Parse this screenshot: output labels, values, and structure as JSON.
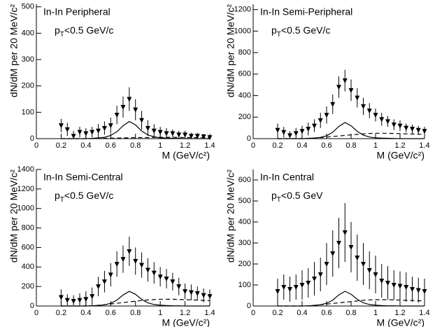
{
  "chart_data": [
    {
      "type": "errorbar",
      "title": "In-In Peripheral",
      "subtitle": {
        "base": "p",
        "sub": "T",
        "rest": "<0.5 GeV/c"
      },
      "xlabel": "M (GeV/c²)",
      "ylabel": "dN/dM per 20 MeV/c²",
      "xlim": [
        0,
        1.4
      ],
      "xticks": [
        0,
        0.2,
        0.4,
        0.6,
        0.8,
        1,
        1.2,
        1.4
      ],
      "ylim": [
        0,
        510
      ],
      "yticks": [
        0,
        100,
        200,
        300,
        400,
        500
      ],
      "x": [
        0.2,
        0.25,
        0.3,
        0.35,
        0.4,
        0.45,
        0.5,
        0.55,
        0.6,
        0.65,
        0.7,
        0.75,
        0.8,
        0.85,
        0.9,
        0.95,
        1,
        1.05,
        1.1,
        1.15,
        1.2,
        1.25,
        1.3,
        1.35,
        1.4
      ],
      "series": [
        {
          "style": "triangle-down",
          "color": "#000000",
          "values": [
            50,
            35,
            10,
            25,
            20,
            25,
            30,
            40,
            50,
            90,
            120,
            150,
            110,
            70,
            40,
            30,
            25,
            20,
            20,
            15,
            15,
            10,
            10,
            8,
            5
          ],
          "errors": [
            25,
            25,
            20,
            20,
            20,
            20,
            25,
            25,
            30,
            35,
            40,
            45,
            40,
            35,
            30,
            25,
            20,
            20,
            15,
            15,
            15,
            12,
            12,
            10,
            10
          ]
        },
        {
          "style": "solid",
          "color": "#000000",
          "values": [
            0,
            0,
            0,
            0,
            0,
            1,
            3,
            5,
            12,
            26,
            49,
            65,
            52,
            29,
            14,
            7,
            3,
            2,
            1,
            1,
            0,
            0,
            0,
            0,
            0
          ]
        },
        {
          "style": "dashed",
          "color": "#000000",
          "values": [
            0,
            0,
            0,
            0,
            0,
            0,
            1,
            1,
            2,
            2,
            3,
            3,
            4,
            4,
            4,
            5,
            5,
            5,
            5,
            5,
            4,
            4,
            4,
            4,
            3
          ]
        }
      ]
    },
    {
      "type": "errorbar",
      "title": "In-In Semi-Peripheral",
      "subtitle": {
        "base": "p",
        "sub": "T",
        "rest": "<0.5 GeV/c"
      },
      "xlabel": "M (GeV/c²)",
      "ylabel": "dN/dM per 20 MeV/c²",
      "xlim": [
        0,
        1.4
      ],
      "xticks": [
        0,
        0.2,
        0.4,
        0.6,
        0.8,
        1,
        1.2,
        1.4
      ],
      "ylim": [
        0,
        1250
      ],
      "yticks": [
        0,
        200,
        400,
        600,
        800,
        1000,
        1200
      ],
      "x": [
        0.2,
        0.25,
        0.3,
        0.35,
        0.4,
        0.45,
        0.5,
        0.55,
        0.6,
        0.65,
        0.7,
        0.75,
        0.8,
        0.85,
        0.9,
        0.95,
        1,
        1.05,
        1.1,
        1.15,
        1.2,
        1.25,
        1.3,
        1.35,
        1.4
      ],
      "series": [
        {
          "style": "triangle-down",
          "color": "#000000",
          "values": [
            80,
            60,
            30,
            50,
            70,
            90,
            120,
            170,
            220,
            320,
            480,
            540,
            450,
            380,
            300,
            260,
            220,
            180,
            160,
            130,
            120,
            100,
            90,
            80,
            70
          ],
          "errors": [
            60,
            50,
            40,
            50,
            50,
            60,
            60,
            70,
            80,
            90,
            100,
            100,
            100,
            90,
            80,
            70,
            60,
            60,
            50,
            50,
            50,
            40,
            40,
            40,
            40
          ]
        },
        {
          "style": "solid",
          "color": "#000000",
          "values": [
            0,
            0,
            0,
            0,
            0,
            3,
            6,
            12,
            27,
            60,
            113,
            150,
            120,
            68,
            33,
            15,
            8,
            5,
            3,
            2,
            0,
            0,
            0,
            0,
            0
          ]
        },
        {
          "style": "dashed",
          "color": "#000000",
          "values": [
            0,
            0,
            0,
            0,
            0,
            2,
            5,
            10,
            15,
            20,
            25,
            30,
            35,
            40,
            45,
            48,
            50,
            50,
            49,
            48,
            47,
            45,
            43,
            41,
            40
          ]
        }
      ]
    },
    {
      "type": "errorbar",
      "title": "In-In Semi-Central",
      "subtitle": {
        "base": "p",
        "sub": "T",
        "rest": "<0.5 GeV/c"
      },
      "xlabel": "M (GeV/c²)",
      "ylabel": "dN/dM per 20 MeV/c²",
      "xlim": [
        0,
        1.4
      ],
      "xticks": [
        0,
        0.2,
        0.4,
        0.6,
        0.8,
        1,
        1.2,
        1.4
      ],
      "ylim": [
        0,
        1400
      ],
      "yticks": [
        0,
        200,
        400,
        600,
        800,
        1000,
        1200,
        1400
      ],
      "x": [
        0.2,
        0.25,
        0.3,
        0.35,
        0.4,
        0.45,
        0.5,
        0.55,
        0.6,
        0.65,
        0.7,
        0.75,
        0.8,
        0.85,
        0.9,
        0.95,
        1,
        1.05,
        1.1,
        1.15,
        1.2,
        1.25,
        1.3,
        1.35,
        1.4
      ],
      "series": [
        {
          "style": "triangle-down",
          "color": "#000000",
          "values": [
            90,
            60,
            50,
            60,
            70,
            100,
            200,
            250,
            320,
            430,
            480,
            560,
            460,
            420,
            370,
            340,
            300,
            280,
            250,
            200,
            150,
            140,
            130,
            110,
            100
          ],
          "errors": [
            80,
            60,
            60,
            70,
            80,
            90,
            100,
            110,
            120,
            130,
            140,
            150,
            140,
            130,
            120,
            110,
            100,
            100,
            90,
            90,
            80,
            80,
            70,
            70,
            70
          ]
        },
        {
          "style": "solid",
          "color": "#000000",
          "values": [
            0,
            0,
            0,
            0,
            0,
            3,
            6,
            12,
            27,
            60,
            113,
            150,
            120,
            68,
            33,
            15,
            8,
            5,
            3,
            2,
            0,
            0,
            0,
            0,
            0
          ]
        },
        {
          "style": "dashed",
          "color": "#000000",
          "values": [
            0,
            0,
            0,
            0,
            0,
            3,
            7,
            14,
            21,
            28,
            35,
            42,
            49,
            56,
            62,
            66,
            70,
            70,
            69,
            67,
            65,
            63,
            60,
            57,
            55
          ]
        }
      ]
    },
    {
      "type": "errorbar",
      "title": "In-In Central",
      "subtitle": {
        "base": "p",
        "sub": "T",
        "rest": "<0.5 GeV"
      },
      "xlabel": "M (GeV/c²)",
      "ylabel": "dN/dM per 20 MeV/c²",
      "xlim": [
        0,
        1.4
      ],
      "xticks": [
        0,
        0.2,
        0.4,
        0.6,
        0.8,
        1,
        1.2,
        1.4
      ],
      "ylim": [
        0,
        650
      ],
      "yticks": [
        0,
        100,
        200,
        300,
        400,
        500,
        600
      ],
      "x": [
        0.2,
        0.25,
        0.3,
        0.35,
        0.4,
        0.45,
        0.5,
        0.55,
        0.6,
        0.65,
        0.7,
        0.75,
        0.8,
        0.85,
        0.9,
        0.95,
        1,
        1.05,
        1.1,
        1.15,
        1.2,
        1.25,
        1.3,
        1.35,
        1.4
      ],
      "series": [
        {
          "style": "triangle-down",
          "color": "#000000",
          "values": [
            70,
            90,
            80,
            90,
            100,
            110,
            130,
            150,
            200,
            250,
            300,
            350,
            280,
            230,
            200,
            170,
            150,
            120,
            110,
            100,
            95,
            90,
            80,
            75,
            70
          ],
          "errors": [
            60,
            60,
            60,
            60,
            70,
            70,
            80,
            80,
            100,
            110,
            120,
            140,
            120,
            110,
            100,
            90,
            90,
            80,
            80,
            70,
            70,
            70,
            60,
            60,
            60
          ]
        },
        {
          "style": "solid",
          "color": "#000000",
          "values": [
            0,
            0,
            0,
            0,
            0,
            1,
            3,
            6,
            13,
            28,
            53,
            70,
            56,
            32,
            15,
            7,
            4,
            2,
            1,
            1,
            0,
            0,
            0,
            0,
            0
          ]
        },
        {
          "style": "dashed",
          "color": "#000000",
          "values": [
            0,
            0,
            0,
            0,
            0,
            1,
            3,
            6,
            9,
            12,
            15,
            18,
            21,
            24,
            27,
            29,
            30,
            30,
            30,
            29,
            28,
            27,
            26,
            25,
            24
          ]
        }
      ]
    }
  ]
}
